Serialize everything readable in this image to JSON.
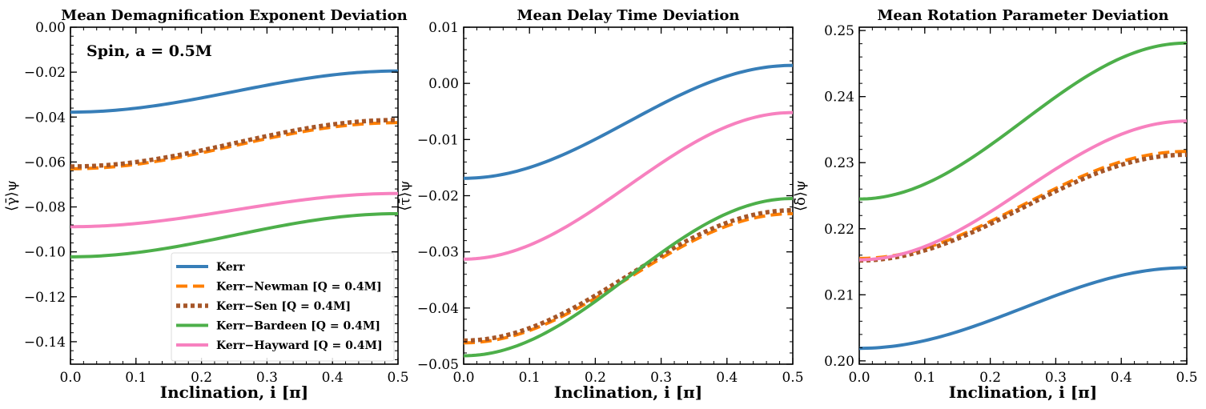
{
  "series_styles": [
    {
      "name": "Kerr",
      "color": "#377eb8",
      "dash": "solid"
    },
    {
      "name": "Kerr−Newman [Q = 0.4M]",
      "color": "#ff7f00",
      "dash": "dashed"
    },
    {
      "name": "Kerr−Sen [Q = 0.4M]",
      "color": "#a65628",
      "dash": "dotted"
    },
    {
      "name": "Kerr−Bardeen [Q = 0.4M]",
      "color": "#4daf4a",
      "dash": "solid"
    },
    {
      "name": "Kerr−Hayward [Q = 0.4M]",
      "color": "#f781bf",
      "dash": "solid"
    }
  ],
  "chart_data": [
    {
      "type": "line",
      "title": "Mean Demagnification Exponent Deviation",
      "xlabel": "Inclination, i [π]",
      "ylabel": "⟨γ̄⟩ψ",
      "annotation": "Spin, a = 0.5M",
      "xlim": [
        0,
        0.5
      ],
      "ylim": [
        -0.15,
        0.0
      ],
      "xticks": [
        0.0,
        0.1,
        0.2,
        0.3,
        0.4,
        0.5
      ],
      "xtick_labels": [
        "0.0",
        "0.1",
        "0.2",
        "0.3",
        "0.4",
        "0.5"
      ],
      "yticks": [
        0.0,
        -0.02,
        -0.04,
        -0.06,
        -0.08,
        -0.1,
        -0.12,
        -0.14
      ],
      "ytick_labels": [
        "0.00",
        "−0.02",
        "−0.04",
        "−0.06",
        "−0.08",
        "−0.10",
        "−0.12",
        "−0.14"
      ],
      "legend": "lower-right",
      "series": [
        {
          "name": "Kerr",
          "start": -0.0378,
          "end": -0.0195
        },
        {
          "name": "Kerr−Newman [Q = 0.4M]",
          "start": -0.063,
          "end": -0.0425
        },
        {
          "name": "Kerr−Sen [Q = 0.4M]",
          "start": -0.062,
          "end": -0.0413
        },
        {
          "name": "Kerr−Bardeen [Q = 0.4M]",
          "start": -0.1022,
          "end": -0.083
        },
        {
          "name": "Kerr−Hayward [Q = 0.4M]",
          "start": -0.0888,
          "end": -0.074
        }
      ]
    },
    {
      "type": "line",
      "title": "Mean Delay Time Deviation",
      "xlabel": "Inclination, i [π]",
      "ylabel": "⟨τ̄⟩ψ",
      "xlim": [
        0,
        0.5
      ],
      "ylim": [
        -0.05,
        0.01
      ],
      "xticks": [
        0.0,
        0.1,
        0.2,
        0.3,
        0.4,
        0.5
      ],
      "xtick_labels": [
        "0.0",
        "0.1",
        "0.2",
        "0.3",
        "0.4",
        "0.5"
      ],
      "yticks": [
        0.01,
        0.0,
        -0.01,
        -0.02,
        -0.03,
        -0.04,
        -0.05
      ],
      "ytick_labels": [
        "0.01",
        "0.00",
        "−0.01",
        "−0.02",
        "−0.03",
        "−0.04",
        "−0.05"
      ],
      "series": [
        {
          "name": "Kerr",
          "start": -0.0169,
          "end": 0.0032
        },
        {
          "name": "Kerr−Newman [Q = 0.4M]",
          "start": -0.0462,
          "end": -0.0232
        },
        {
          "name": "Kerr−Sen [Q = 0.4M]",
          "start": -0.0458,
          "end": -0.0226
        },
        {
          "name": "Kerr−Bardeen [Q = 0.4M]",
          "start": -0.0485,
          "end": -0.0205
        },
        {
          "name": "Kerr−Hayward [Q = 0.4M]",
          "start": -0.0313,
          "end": -0.0052
        }
      ]
    },
    {
      "type": "line",
      "title": "Mean Rotation Parameter Deviation",
      "xlabel": "Inclination, i [π]",
      "ylabel": "⟨δ̄⟩ψ",
      "xlim": [
        0,
        0.5
      ],
      "ylim": [
        0.1995,
        0.2505
      ],
      "xticks": [
        0.0,
        0.1,
        0.2,
        0.3,
        0.4,
        0.5
      ],
      "xtick_labels": [
        "0.0",
        "0.1",
        "0.2",
        "0.3",
        "0.4",
        "0.5"
      ],
      "yticks": [
        0.2,
        0.21,
        0.22,
        0.23,
        0.24,
        0.25
      ],
      "ytick_labels": [
        "0.20",
        "0.21",
        "0.22",
        "0.23",
        "0.24",
        "0.25"
      ],
      "series": [
        {
          "name": "Kerr",
          "start": 0.2019,
          "end": 0.2141
        },
        {
          "name": "Kerr−Newman [Q = 0.4M]",
          "start": 0.2155,
          "end": 0.2317
        },
        {
          "name": "Kerr−Sen [Q = 0.4M]",
          "start": 0.2152,
          "end": 0.2312
        },
        {
          "name": "Kerr−Bardeen [Q = 0.4M]",
          "start": 0.2245,
          "end": 0.2481
        },
        {
          "name": "Kerr−Hayward [Q = 0.4M]",
          "start": 0.2153,
          "end": 0.2363
        }
      ]
    }
  ]
}
